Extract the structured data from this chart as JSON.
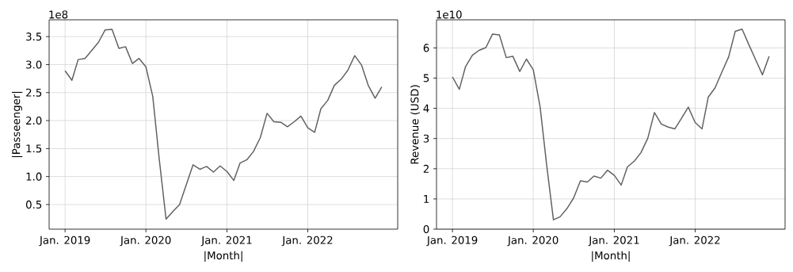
{
  "chart_data": [
    {
      "type": "line",
      "xlabel": "|Month|",
      "ylabel": "|Passeenger|",
      "annotations": [
        "1e8"
      ],
      "grid": true,
      "x": [
        "2019-01",
        "2019-02",
        "2019-03",
        "2019-04",
        "2019-05",
        "2019-06",
        "2019-07",
        "2019-08",
        "2019-09",
        "2019-10",
        "2019-11",
        "2019-12",
        "2020-01",
        "2020-02",
        "2020-03",
        "2020-04",
        "2020-05",
        "2020-06",
        "2020-07",
        "2020-08",
        "2020-09",
        "2020-10",
        "2020-11",
        "2020-12",
        "2021-01",
        "2021-02",
        "2021-03",
        "2021-04",
        "2021-05",
        "2021-06",
        "2021-07",
        "2021-08",
        "2021-09",
        "2021-10",
        "2021-11",
        "2021-12",
        "2022-01",
        "2022-02",
        "2022-03",
        "2022-04",
        "2022-05",
        "2022-06",
        "2022-07",
        "2022-08",
        "2022-09",
        "2022-10",
        "2022-11",
        "2022-12"
      ],
      "series": [
        {
          "color": "#606060",
          "values": [
            2.89,
            2.72,
            3.09,
            3.11,
            3.25,
            3.4,
            3.62,
            3.63,
            3.29,
            3.32,
            3.02,
            3.11,
            2.96,
            2.43,
            1.32,
            0.24,
            0.37,
            0.5,
            0.85,
            1.21,
            1.13,
            1.18,
            1.08,
            1.19,
            1.09,
            0.93,
            1.24,
            1.3,
            1.45,
            1.7,
            2.13,
            1.98,
            1.97,
            1.89,
            1.98,
            2.08,
            1.87,
            1.79,
            2.21,
            2.36,
            2.63,
            2.74,
            2.9,
            3.16,
            2.99,
            2.63,
            2.4,
            2.6
          ]
        }
      ],
      "xlim": [
        "2018-10-21",
        "2023-02-11"
      ],
      "xticks": [
        {
          "value": "2019-01",
          "label": "Jan. 2019"
        },
        {
          "value": "2020-01",
          "label": "Jan. 2020"
        },
        {
          "value": "2021-01",
          "label": "Jan. 2021"
        },
        {
          "value": "2022-01",
          "label": "Jan. 2022"
        }
      ],
      "ylim": [
        0.06,
        3.8
      ],
      "yticks": [
        0.5,
        {
          "value": 1,
          "label": "1.0"
        },
        1.5,
        {
          "value": 2,
          "label": "2.0"
        },
        2.5,
        {
          "value": 3,
          "label": "3.0"
        },
        3.5
      ]
    },
    {
      "type": "line",
      "xlabel": "|Month|",
      "ylabel": "Revenue (USD)",
      "annotations": [
        "1e10"
      ],
      "grid": true,
      "x": [
        "2019-01",
        "2019-02",
        "2019-03",
        "2019-04",
        "2019-05",
        "2019-06",
        "2019-07",
        "2019-08",
        "2019-09",
        "2019-10",
        "2019-11",
        "2019-12",
        "2020-01",
        "2020-02",
        "2020-03",
        "2020-04",
        "2020-05",
        "2020-06",
        "2020-07",
        "2020-08",
        "2020-09",
        "2020-10",
        "2020-11",
        "2020-12",
        "2021-01",
        "2021-02",
        "2021-03",
        "2021-04",
        "2021-05",
        "2021-06",
        "2021-07",
        "2021-08",
        "2021-09",
        "2021-10",
        "2021-11",
        "2021-12",
        "2022-01",
        "2022-02",
        "2022-03",
        "2022-04",
        "2022-05",
        "2022-06",
        "2022-07",
        "2022-08",
        "2022-09",
        "2022-10",
        "2022-11",
        "2022-12"
      ],
      "series": [
        {
          "color": "#606060",
          "values": [
            5.04,
            4.63,
            5.38,
            5.76,
            5.92,
            6.01,
            6.46,
            6.43,
            5.68,
            5.72,
            5.22,
            5.63,
            5.28,
            4.04,
            2.15,
            0.31,
            0.41,
            0.68,
            1.03,
            1.6,
            1.56,
            1.76,
            1.69,
            1.95,
            1.78,
            1.46,
            2.06,
            2.25,
            2.53,
            3.01,
            3.86,
            3.48,
            3.38,
            3.32,
            3.68,
            4.04,
            3.53,
            3.32,
            4.37,
            4.68,
            5.19,
            5.7,
            6.55,
            6.62,
            6.1,
            5.61,
            5.11,
            5.72
          ]
        }
      ],
      "xlim": [
        "2018-10-21",
        "2023-02-11"
      ],
      "xticks": [
        {
          "value": "2019-01",
          "label": "Jan. 2019"
        },
        {
          "value": "2020-01",
          "label": "Jan. 2020"
        },
        {
          "value": "2021-01",
          "label": "Jan. 2021"
        },
        {
          "value": "2022-01",
          "label": "Jan. 2022"
        }
      ],
      "ylim": [
        0,
        6.93
      ],
      "yticks": [
        0,
        1,
        2,
        3,
        4,
        5,
        6
      ]
    }
  ]
}
